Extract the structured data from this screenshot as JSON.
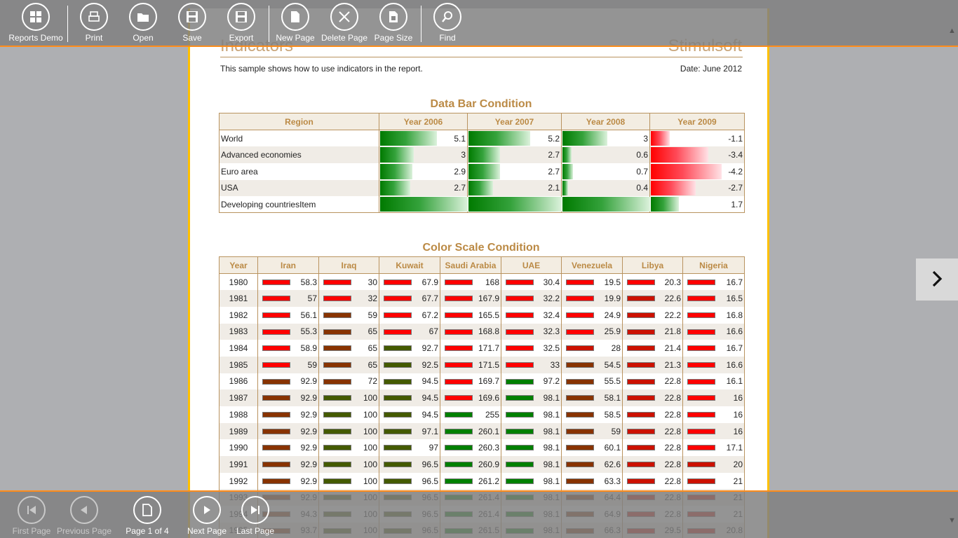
{
  "toolbar": {
    "reports_demo": "Reports Demo",
    "print": "Print",
    "open": "Open",
    "save": "Save",
    "export": "Export",
    "new_page": "New Page",
    "delete_page": "Delete Page",
    "page_size": "Page Size",
    "find": "Find"
  },
  "navigation": {
    "first_page": "First Page",
    "previous_page": "Previous Page",
    "page_indicator": "Page 1 of 4",
    "next_page": "Next Page",
    "last_page": "Last Page"
  },
  "report": {
    "title": "Indicators",
    "brand": "Stimulsoft",
    "description": "This sample shows how to use indicators in the report.",
    "date": "Date: June 2012",
    "databar_title": "Data Bar Condition",
    "databar_headers": [
      "Region",
      "Year 2006",
      "Year 2007",
      "Year 2008",
      "Year 2009"
    ],
    "databar_rows": [
      {
        "region": "World",
        "values": [
          "5.1",
          "5.2",
          "3",
          "-1.1"
        ],
        "levels": [
          0.65,
          0.66,
          0.51,
          0.2
        ]
      },
      {
        "region": "Advanced economies",
        "values": [
          "3",
          "2.7",
          "0.6",
          "-3.4"
        ],
        "levels": [
          0.38,
          0.34,
          0.1,
          0.61
        ]
      },
      {
        "region": "Euro area",
        "values": [
          "2.9",
          "2.7",
          "0.7",
          "-4.2"
        ],
        "levels": [
          0.37,
          0.34,
          0.12,
          0.75
        ]
      },
      {
        "region": "USA",
        "values": [
          "2.7",
          "2.1",
          "0.4",
          "-2.7"
        ],
        "levels": [
          0.34,
          0.26,
          0.06,
          0.48
        ]
      },
      {
        "region": "Developing countriesItem",
        "values": [
          "",
          "",
          "",
          "1.7"
        ],
        "levels": [
          1.0,
          1.0,
          1.0,
          0.3
        ]
      }
    ],
    "colorscale_title": "Color Scale Condition",
    "colorscale_headers": [
      "Year",
      "Iran",
      "Iraq",
      "Kuwait",
      "Saudi Arabia",
      "UAE",
      "Venezuela",
      "Libya",
      "Nigeria"
    ],
    "colors": {
      "red": "#ff0000",
      "darkred": "#cc1100",
      "brown": "#883300",
      "olive": "#445a00",
      "green": "#008000"
    },
    "colorscale_rows": [
      {
        "year": "1980",
        "values": [
          "58.3",
          "30",
          "67.9",
          "168",
          "30.4",
          "19.5",
          "20.3",
          "16.7"
        ],
        "colors": [
          "red",
          "red",
          "red",
          "red",
          "red",
          "red",
          "red",
          "red"
        ]
      },
      {
        "year": "1981",
        "values": [
          "57",
          "32",
          "67.7",
          "167.9",
          "32.2",
          "19.9",
          "22.6",
          "16.5"
        ],
        "colors": [
          "red",
          "red",
          "red",
          "red",
          "red",
          "red",
          "darkred",
          "red"
        ]
      },
      {
        "year": "1982",
        "values": [
          "56.1",
          "59",
          "67.2",
          "165.5",
          "32.4",
          "24.9",
          "22.2",
          "16.8"
        ],
        "colors": [
          "red",
          "brown",
          "red",
          "red",
          "red",
          "red",
          "darkred",
          "red"
        ]
      },
      {
        "year": "1983",
        "values": [
          "55.3",
          "65",
          "67",
          "168.8",
          "32.3",
          "25.9",
          "21.8",
          "16.6"
        ],
        "colors": [
          "red",
          "brown",
          "red",
          "red",
          "red",
          "red",
          "darkred",
          "red"
        ]
      },
      {
        "year": "1984",
        "values": [
          "58.9",
          "65",
          "92.7",
          "171.7",
          "32.5",
          "28",
          "21.4",
          "16.7"
        ],
        "colors": [
          "red",
          "brown",
          "olive",
          "red",
          "red",
          "darkred",
          "darkred",
          "red"
        ]
      },
      {
        "year": "1985",
        "values": [
          "59",
          "65",
          "92.5",
          "171.5",
          "33",
          "54.5",
          "21.3",
          "16.6"
        ],
        "colors": [
          "red",
          "brown",
          "olive",
          "red",
          "red",
          "brown",
          "darkred",
          "red"
        ]
      },
      {
        "year": "1986",
        "values": [
          "92.9",
          "72",
          "94.5",
          "169.7",
          "97.2",
          "55.5",
          "22.8",
          "16.1"
        ],
        "colors": [
          "brown",
          "brown",
          "olive",
          "red",
          "green",
          "brown",
          "darkred",
          "red"
        ]
      },
      {
        "year": "1987",
        "values": [
          "92.9",
          "100",
          "94.5",
          "169.6",
          "98.1",
          "58.1",
          "22.8",
          "16"
        ],
        "colors": [
          "brown",
          "olive",
          "olive",
          "red",
          "green",
          "brown",
          "darkred",
          "red"
        ]
      },
      {
        "year": "1988",
        "values": [
          "92.9",
          "100",
          "94.5",
          "255",
          "98.1",
          "58.5",
          "22.8",
          "16"
        ],
        "colors": [
          "brown",
          "olive",
          "olive",
          "green",
          "green",
          "brown",
          "darkred",
          "red"
        ]
      },
      {
        "year": "1989",
        "values": [
          "92.9",
          "100",
          "97.1",
          "260.1",
          "98.1",
          "59",
          "22.8",
          "16"
        ],
        "colors": [
          "brown",
          "olive",
          "olive",
          "green",
          "green",
          "brown",
          "darkred",
          "red"
        ]
      },
      {
        "year": "1990",
        "values": [
          "92.9",
          "100",
          "97",
          "260.3",
          "98.1",
          "60.1",
          "22.8",
          "17.1"
        ],
        "colors": [
          "brown",
          "olive",
          "olive",
          "green",
          "green",
          "brown",
          "darkred",
          "red"
        ]
      },
      {
        "year": "1991",
        "values": [
          "92.9",
          "100",
          "96.5",
          "260.9",
          "98.1",
          "62.6",
          "22.8",
          "20"
        ],
        "colors": [
          "brown",
          "olive",
          "olive",
          "green",
          "green",
          "brown",
          "darkred",
          "darkred"
        ]
      },
      {
        "year": "1992",
        "values": [
          "92.9",
          "100",
          "96.5",
          "261.2",
          "98.1",
          "63.3",
          "22.8",
          "21"
        ],
        "colors": [
          "brown",
          "olive",
          "olive",
          "green",
          "green",
          "brown",
          "darkred",
          "darkred"
        ]
      },
      {
        "year": "1993",
        "values": [
          "92.9",
          "100",
          "96.5",
          "261.4",
          "98.1",
          "64.4",
          "22.8",
          "21"
        ],
        "colors": [
          "brown",
          "olive",
          "olive",
          "green",
          "green",
          "brown",
          "darkred",
          "darkred"
        ]
      },
      {
        "year": "1994",
        "values": [
          "94.3",
          "100",
          "96.5",
          "261.4",
          "98.1",
          "64.9",
          "22.8",
          "21"
        ],
        "colors": [
          "brown",
          "olive",
          "olive",
          "green",
          "green",
          "brown",
          "darkred",
          "darkred"
        ]
      },
      {
        "year": "1995",
        "values": [
          "93.7",
          "100",
          "96.5",
          "261.5",
          "98.1",
          "66.3",
          "29.5",
          "20.8"
        ],
        "colors": [
          "brown",
          "olive",
          "olive",
          "green",
          "green",
          "brown",
          "darkred",
          "darkred"
        ]
      }
    ]
  }
}
